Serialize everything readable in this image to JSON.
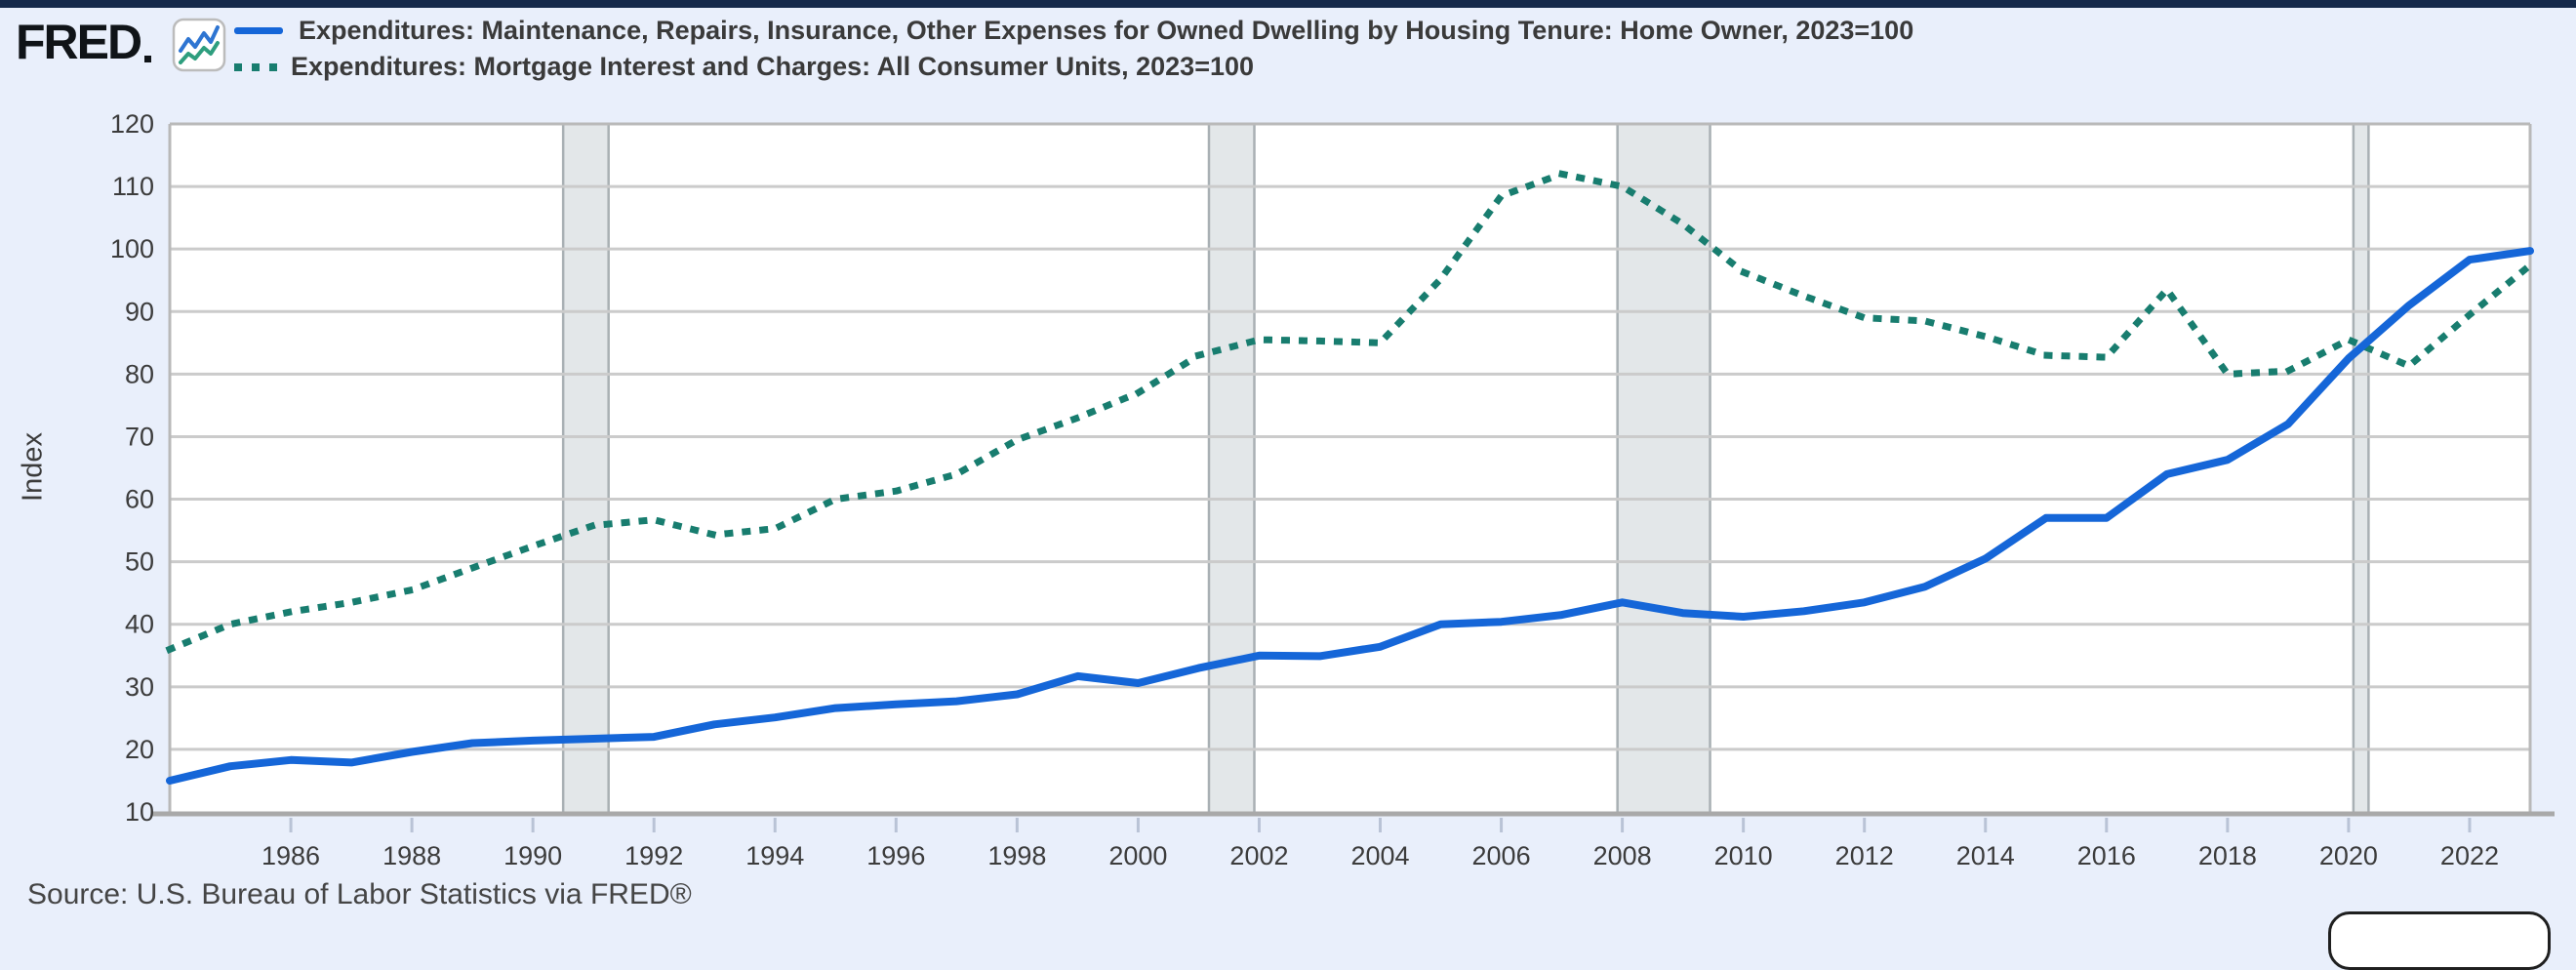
{
  "header": {
    "logo_text": "FRED",
    "legend": [
      {
        "label": "Expenditures: Maintenance, Repairs, Insurance, Other Expenses for Owned Dwelling by Housing Tenure: Home Owner, 2023=100",
        "style": "solid",
        "color": "#1566d8"
      },
      {
        "label": "Expenditures: Mortgage Interest and Charges: All Consumer Units, 2023=100",
        "style": "dotted",
        "color": "#187d6f"
      }
    ]
  },
  "chart_data": {
    "type": "line",
    "title": "",
    "xlabel": "",
    "ylabel": "Index",
    "ylim": [
      10,
      120
    ],
    "yticks": [
      10,
      20,
      30,
      40,
      50,
      60,
      70,
      80,
      90,
      100,
      110,
      120
    ],
    "xticks": [
      1986,
      1988,
      1990,
      1992,
      1994,
      1996,
      1998,
      2000,
      2002,
      2004,
      2006,
      2008,
      2010,
      2012,
      2014,
      2016,
      2018,
      2020,
      2022
    ],
    "xlim": [
      1984,
      2023
    ],
    "grid": true,
    "legend_position": "top",
    "x": [
      1984,
      1985,
      1986,
      1987,
      1988,
      1989,
      1990,
      1991,
      1992,
      1993,
      1994,
      1995,
      1996,
      1997,
      1998,
      1999,
      2000,
      2001,
      2002,
      2003,
      2004,
      2005,
      2006,
      2007,
      2008,
      2009,
      2010,
      2011,
      2012,
      2013,
      2014,
      2015,
      2016,
      2017,
      2018,
      2019,
      2020,
      2021,
      2022,
      2023
    ],
    "series": [
      {
        "name": "Expenditures: Maintenance, Repairs, Insurance, Other Expenses for Owned Dwelling by Housing Tenure: Home Owner, 2023=100",
        "style": "solid",
        "color": "#1566d8",
        "values": [
          15,
          17.3,
          18.3,
          17.9,
          19.6,
          21,
          21.4,
          21.7,
          22,
          24,
          25.1,
          26.6,
          27.2,
          27.7,
          28.8,
          31.7,
          30.6,
          33,
          35,
          34.9,
          36.4,
          40,
          40.4,
          41.5,
          43.5,
          41.8,
          41.2,
          42.1,
          43.5,
          46,
          50.5,
          57,
          57,
          64,
          66.3,
          72,
          82.5,
          91,
          98.3,
          99.7
        ]
      },
      {
        "name": "Expenditures: Mortgage Interest and Charges: All Consumer Units, 2023=100",
        "style": "dotted",
        "color": "#187d6f",
        "values": [
          36,
          40,
          42,
          43.5,
          45.5,
          49,
          52.5,
          55.8,
          56.7,
          54.3,
          55.3,
          60,
          61.3,
          64,
          69.5,
          73,
          77,
          83,
          85.5,
          85.3,
          85,
          95.2,
          108.5,
          112,
          110,
          104,
          96.3,
          92.5,
          89,
          88.5,
          86,
          83,
          82.7,
          93.5,
          80,
          80.5,
          85.5,
          81.3,
          89.5,
          97.4
        ]
      }
    ],
    "recession_bands": [
      {
        "start": 1990.5,
        "end": 1991.25
      },
      {
        "start": 2001.17,
        "end": 2001.92
      },
      {
        "start": 2007.92,
        "end": 2009.45
      },
      {
        "start": 2020.08,
        "end": 2020.33
      }
    ]
  },
  "footer": {
    "source": "Source: U.S. Bureau of Labor Statistics via FRED®"
  },
  "colors": {
    "page_background": "#e9effb",
    "top_strip": "#15294b",
    "plot_background": "#ffffff",
    "gridline": "#cbcbcb",
    "plot_border": "#b9b9b9",
    "axis_line": "#a9a9a9",
    "tick_mark": "#b9c3d6",
    "tick_label": "#3c3c3c",
    "recession_band_fill": "#e3e7e9",
    "recession_band_edge": "#a9b0b4",
    "series_homeowner": "#1566d8",
    "series_mortgage": "#187d6f"
  }
}
